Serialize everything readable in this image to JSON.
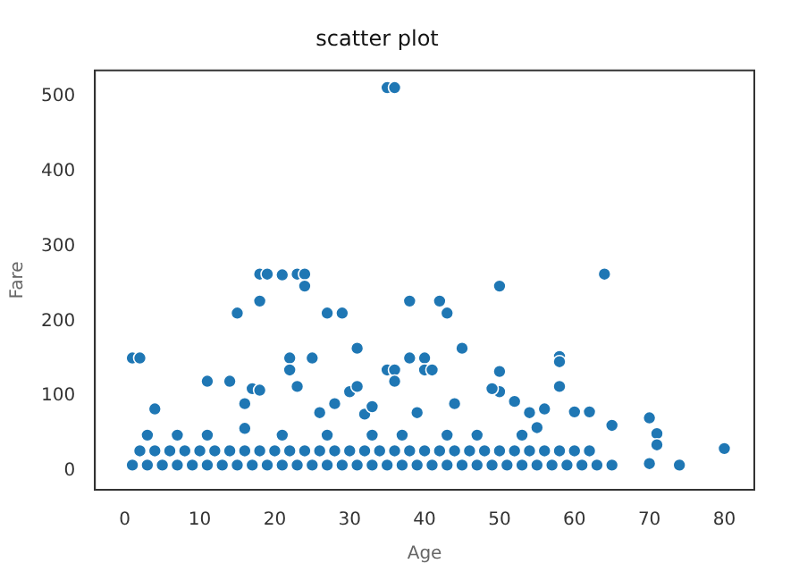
{
  "chart_data": {
    "type": "scatter",
    "title": "scatter plot",
    "xlabel": "Age",
    "ylabel": "Fare",
    "x": [
      35,
      36,
      1,
      2,
      4,
      11,
      14,
      15,
      17,
      18,
      18,
      19,
      18,
      21,
      23,
      24,
      24,
      22,
      22,
      25,
      23,
      27,
      29,
      31,
      30,
      31,
      35,
      36,
      36,
      38,
      38,
      39,
      40,
      40,
      41,
      42,
      43,
      45,
      50,
      50,
      50,
      49,
      52,
      56,
      58,
      58,
      58,
      60,
      62,
      64,
      65,
      70,
      71,
      71,
      80,
      74,
      70,
      54,
      55,
      44,
      32,
      33,
      28,
      26,
      16,
      16,
      1,
      3,
      5,
      7,
      9,
      11,
      13,
      15,
      17,
      19,
      21,
      23,
      25,
      27,
      29,
      31,
      33,
      35,
      37,
      39,
      41,
      43,
      45,
      47,
      49,
      51,
      53,
      55,
      57,
      59,
      61,
      63,
      65,
      2,
      4,
      6,
      8,
      10,
      12,
      14,
      16,
      18,
      20,
      22,
      24,
      26,
      28,
      30,
      32,
      34,
      36,
      38,
      40,
      42,
      44,
      46,
      48,
      50,
      52,
      54,
      56,
      58,
      60,
      62,
      3,
      7,
      11,
      21,
      27,
      33,
      37,
      43,
      47,
      53
    ],
    "values": [
      512,
      512,
      151,
      151,
      83,
      120,
      120,
      211,
      110,
      108,
      263,
      263,
      227,
      262,
      263,
      263,
      247,
      151,
      135,
      151,
      113,
      211,
      211,
      164,
      106,
      113,
      135,
      135,
      120,
      227,
      151,
      78,
      151,
      135,
      135,
      227,
      211,
      164,
      247,
      133,
      106,
      110,
      93,
      83,
      153,
      146,
      113,
      79,
      79,
      263,
      61,
      71,
      50,
      35,
      30,
      8,
      10,
      78,
      58,
      90,
      76,
      86,
      90,
      78,
      57,
      90,
      8,
      8,
      8,
      8,
      8,
      8,
      8,
      8,
      8,
      8,
      8,
      8,
      8,
      8,
      8,
      8,
      8,
      8,
      8,
      8,
      8,
      8,
      8,
      8,
      8,
      8,
      8,
      8,
      8,
      8,
      8,
      8,
      8,
      27,
      27,
      27,
      27,
      27,
      27,
      27,
      27,
      27,
      27,
      27,
      27,
      27,
      27,
      27,
      27,
      27,
      27,
      27,
      27,
      27,
      27,
      27,
      27,
      27,
      27,
      27,
      27,
      27,
      27,
      27,
      48,
      48,
      48,
      48,
      48,
      48,
      48,
      48,
      48,
      48
    ],
    "xlim": [
      -4,
      84
    ],
    "xticks": [
      0,
      10,
      20,
      30,
      40,
      50,
      60,
      70,
      80
    ],
    "ylim": [
      -25,
      535
    ],
    "yticks": [
      0,
      100,
      200,
      300,
      400,
      500
    ]
  }
}
